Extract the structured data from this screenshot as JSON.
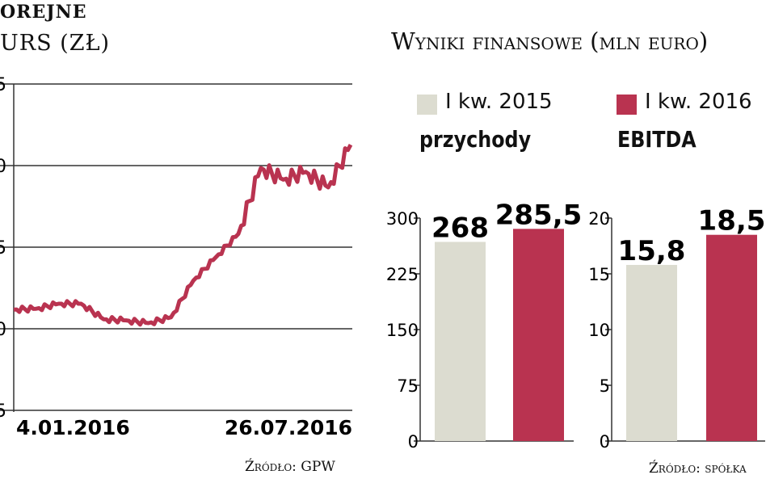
{
  "stock": {
    "title": "OREJNE",
    "subtitle": "URS (ZŁ)",
    "source": "Źródło: GPW",
    "colors": {
      "line": "#b93350",
      "grid": "#333333"
    },
    "chart_data": {
      "type": "line",
      "y_tick_labels": [
        "5",
        "0",
        "5",
        "0",
        "5"
      ],
      "x_tick_labels": [
        "4.01.2016",
        "26.07.2016"
      ],
      "x": [
        "04.01.2016",
        "18.01.2016",
        "01.02.2016",
        "15.02.2016",
        "29.02.2016",
        "14.03.2016",
        "28.03.2016",
        "11.04.2016",
        "25.04.2016",
        "09.05.2016",
        "23.05.2016",
        "06.06.2016",
        "20.06.2016",
        "04.07.2016",
        "18.07.2016",
        "26.07.2016"
      ],
      "values": [
        0.85,
        0.87,
        1.0,
        1.0,
        0.6,
        0.57,
        0.5,
        0.65,
        1.6,
        2.2,
        2.8,
        4.5,
        4.2,
        4.4,
        4.0,
        5.1
      ],
      "y_units_note": ""
    }
  },
  "finance": {
    "title": "Wyniki finansowe (mln euro)",
    "source": "Źródło: spółka",
    "legend": [
      {
        "label": "I kw. 2015",
        "color": "#dcdcd0"
      },
      {
        "label": "I kw. 2016",
        "color": "#b93350"
      }
    ],
    "chart_data": [
      {
        "type": "bar",
        "title": "przychody",
        "categories": [
          "I kw. 2015",
          "I kw. 2016"
        ],
        "values": [
          268,
          285.5
        ],
        "value_labels": [
          "268",
          "285,5"
        ],
        "ylim": [
          0,
          300
        ],
        "y_ticks": [
          0,
          75,
          150,
          225,
          300
        ]
      },
      {
        "type": "bar",
        "title": "EBITDA",
        "categories": [
          "I kw. 2015",
          "I kw. 2016"
        ],
        "values": [
          15.8,
          18.5
        ],
        "value_labels": [
          "15,8",
          "18,5"
        ],
        "ylim": [
          0,
          20
        ],
        "y_ticks": [
          0,
          5,
          10,
          15,
          20
        ]
      }
    ]
  }
}
